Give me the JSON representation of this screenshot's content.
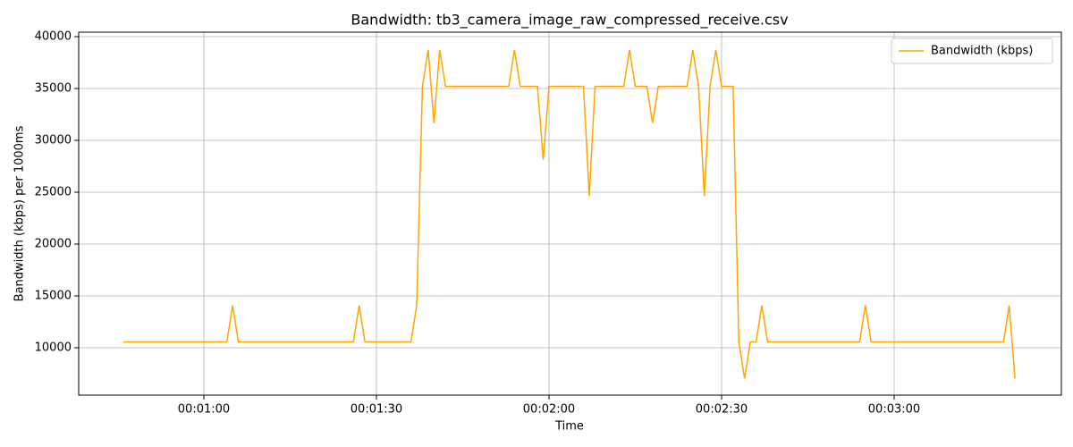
{
  "chart_data": {
    "type": "line",
    "title": "Bandwidth: tb3_camera_image_raw_compressed_receive.csv",
    "x_label": "Time",
    "y_label": "Bandwidth (kbps) per 1000ms",
    "x": [
      46,
      47,
      48,
      49,
      50,
      51,
      52,
      53,
      54,
      55,
      56,
      57,
      58,
      59,
      60,
      61,
      62,
      63,
      64,
      65,
      66,
      67,
      68,
      69,
      70,
      71,
      72,
      73,
      74,
      75,
      76,
      77,
      78,
      79,
      80,
      81,
      82,
      83,
      84,
      85,
      86,
      87,
      88,
      89,
      90,
      91,
      92,
      93,
      94,
      95,
      96,
      97,
      98,
      99,
      100,
      101,
      102,
      103,
      104,
      105,
      106,
      107,
      108,
      109,
      110,
      111,
      112,
      113,
      114,
      115,
      116,
      117,
      118,
      119,
      120,
      121,
      122,
      123,
      124,
      125,
      126,
      127,
      128,
      129,
      130,
      131,
      132,
      133,
      134,
      135,
      136,
      137,
      138,
      139,
      140,
      141,
      142,
      143,
      144,
      145,
      146,
      147,
      148,
      149,
      150,
      151,
      152,
      153,
      154,
      155,
      156,
      157,
      158,
      159,
      160,
      161,
      162,
      163,
      164,
      165,
      166,
      167,
      168,
      169,
      170,
      171,
      172,
      173,
      174,
      175,
      176,
      177,
      178,
      179,
      180,
      181,
      182,
      183,
      184,
      185,
      186,
      187,
      188,
      189,
      190,
      191,
      192,
      193,
      194,
      195,
      196,
      197,
      198,
      199,
      200,
      201
    ],
    "series": [
      {
        "name": "Bandwidth (kbps)",
        "color": "#ffa500",
        "values": [
          10560,
          10560,
          10560,
          10560,
          10560,
          10560,
          10560,
          10560,
          10560,
          10560,
          10560,
          10560,
          10560,
          10560,
          10560,
          10560,
          10560,
          10560,
          10560,
          14080,
          10560,
          10560,
          10560,
          10560,
          10560,
          10560,
          10560,
          10560,
          10560,
          10560,
          10560,
          10560,
          10560,
          10560,
          10560,
          10560,
          10560,
          10560,
          10560,
          10560,
          10560,
          14080,
          10560,
          10560,
          10560,
          10560,
          10560,
          10560,
          10560,
          10560,
          10560,
          14080,
          35200,
          38720,
          31680,
          38720,
          35200,
          35200,
          35200,
          35200,
          35200,
          35200,
          35200,
          35200,
          35200,
          35200,
          35200,
          35200,
          38720,
          35200,
          35200,
          35200,
          35200,
          28160,
          35200,
          35200,
          35200,
          35200,
          35200,
          35200,
          35200,
          24640,
          35200,
          35200,
          35200,
          35200,
          35200,
          35200,
          38720,
          35200,
          35200,
          35200,
          31680,
          35200,
          35200,
          35200,
          35200,
          35200,
          35200,
          38720,
          35200,
          24640,
          35200,
          38720,
          35200,
          35200,
          35200,
          10560,
          7040,
          10560,
          10560,
          14080,
          10560,
          10560,
          10560,
          10560,
          10560,
          10560,
          10560,
          10560,
          10560,
          10560,
          10560,
          10560,
          10560,
          10560,
          10560,
          10560,
          10560,
          14080,
          10560,
          10560,
          10560,
          10560,
          10560,
          10560,
          10560,
          10560,
          10560,
          10560,
          10560,
          10560,
          10560,
          10560,
          10560,
          10560,
          10560,
          10560,
          10560,
          10560,
          10560,
          10560,
          10560,
          10560,
          14080,
          7040
        ]
      }
    ],
    "xlim": [
      38.24,
      209.07
    ],
    "ylim": [
      5431,
      40431
    ],
    "xticks": [
      {
        "value": 60,
        "label": "00:01:00"
      },
      {
        "value": 90,
        "label": "00:01:30"
      },
      {
        "value": 120,
        "label": "00:02:00"
      },
      {
        "value": 150,
        "label": "00:02:30"
      },
      {
        "value": 180,
        "label": "00:03:00"
      }
    ],
    "yticks": [
      10000,
      15000,
      20000,
      25000,
      30000,
      35000,
      40000
    ],
    "grid": true,
    "legend": "upper right"
  }
}
